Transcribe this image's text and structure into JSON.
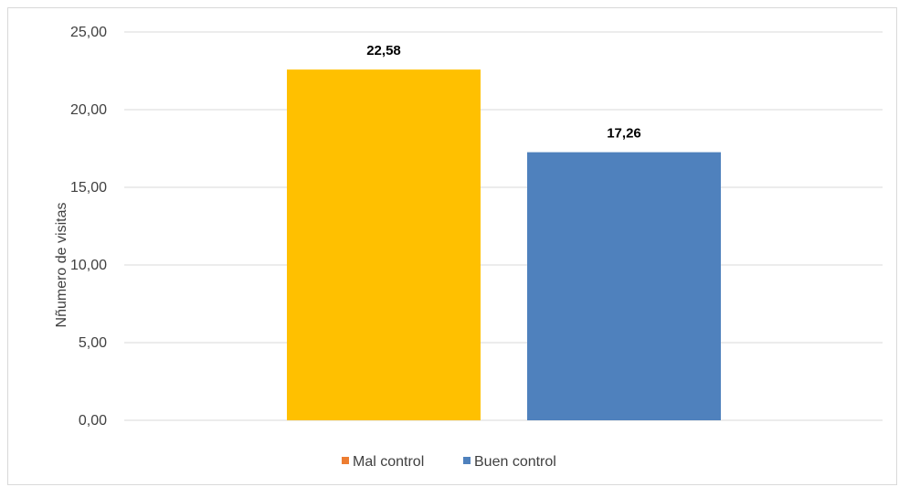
{
  "chart_data": {
    "type": "bar",
    "title": "",
    "xlabel": "",
    "ylabel": "Nñumero de visitas",
    "ylim": [
      0,
      25
    ],
    "yticks": [
      "0,00",
      "5,00",
      "10,00",
      "15,00",
      "20,00",
      "25,00"
    ],
    "grid": true,
    "legend_position": "bottom",
    "series": [
      {
        "name": "Mal control",
        "value": 22.58,
        "label": "22,58",
        "color": "#FFC000",
        "legend_color": "#ED7D31"
      },
      {
        "name": "Buen control",
        "value": 17.26,
        "label": "17,26",
        "color": "#4F81BD",
        "legend_color": "#4F81BD"
      }
    ]
  }
}
